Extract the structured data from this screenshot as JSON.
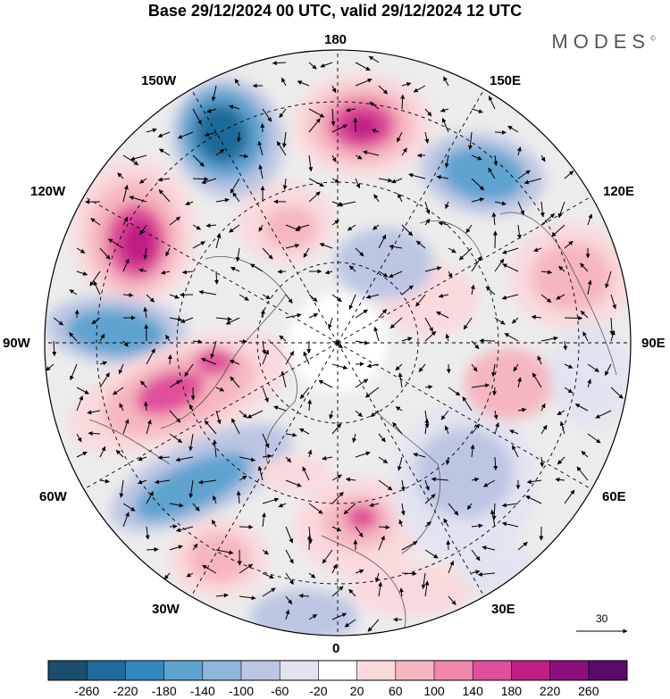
{
  "title": "Base 29/12/2024 00 UTC, valid 29/12/2024 12 UTC",
  "brand": "MODES",
  "brand_mark": "©",
  "longitude_labels": {
    "top": "180",
    "top_left": "150W",
    "top_right": "150E",
    "upper_left": "120W",
    "upper_right": "120E",
    "left": "90W",
    "right": "90E",
    "lower_left": "60W",
    "lower_right": "60E",
    "bottom_left": "30W",
    "bottom_right": "30E",
    "bottom": "0"
  },
  "reference_vector": "30",
  "colorbar": {
    "ticks": [
      "-260",
      "-220",
      "-180",
      "-140",
      "-100",
      "-60",
      "-20",
      "20",
      "60",
      "100",
      "140",
      "180",
      "220",
      "260"
    ],
    "colors": [
      "#1a4e6e",
      "#1f6a9a",
      "#3388bf",
      "#5fa3cf",
      "#8fb6dc",
      "#bcc6e3",
      "#e2e3f0",
      "#ffffff",
      "#f9d9dc",
      "#f5b6bf",
      "#ef87ae",
      "#e0509a",
      "#bf1f85",
      "#8c0f7c",
      "#5a0a6a"
    ]
  },
  "anomaly_colors": {
    "strong_negative": "#1f6a9a",
    "negative": "#5fa3cf",
    "weak_negative": "#bcc6e3",
    "faint_negative": "#e2e3f0",
    "neutral": "#ececec",
    "faint_positive": "#f9d9dc",
    "positive": "#f5b6bf",
    "strong_positive": "#e0509a",
    "very_strong_positive": "#bf1f85"
  }
}
